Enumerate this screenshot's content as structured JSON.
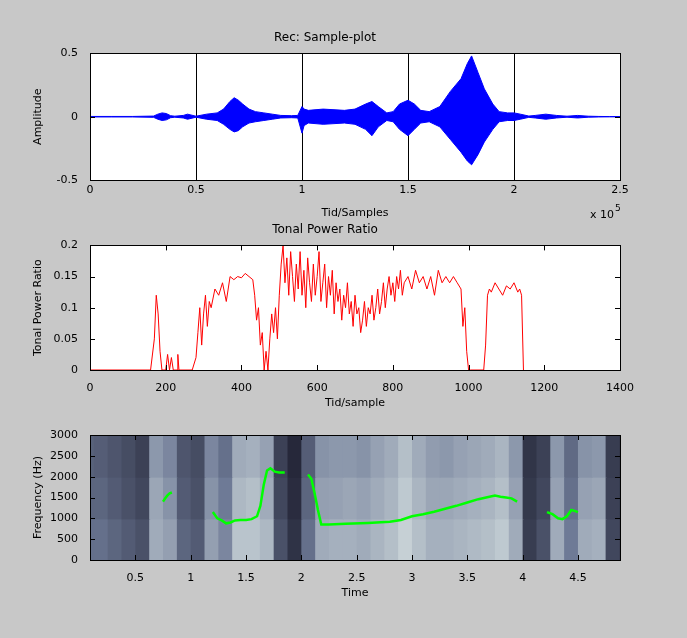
{
  "chart_data": [
    {
      "type": "area",
      "title": "Rec: Sample-plot",
      "x_label": "Tid/Samples",
      "y_label": "Amplitude",
      "x_multiplier": {
        "text": "x 10",
        "superscript": "5"
      },
      "x": [
        0,
        0.1,
        0.2,
        0.3,
        0.32,
        0.34,
        0.36,
        0.38,
        0.4,
        0.44,
        0.46,
        0.5,
        0.55,
        0.6,
        0.63,
        0.66,
        0.68,
        0.7,
        0.72,
        0.75,
        0.78,
        0.82,
        0.86,
        0.9,
        0.95,
        0.98,
        1.0,
        1.01,
        1.03,
        1.1,
        1.2,
        1.25,
        1.3,
        1.33,
        1.36,
        1.4,
        1.43,
        1.46,
        1.5,
        1.53,
        1.56,
        1.6,
        1.65,
        1.7,
        1.75,
        1.78,
        1.8,
        1.83,
        1.86,
        1.9,
        1.93,
        1.97,
        2.0,
        2.03,
        2.07,
        2.1,
        2.15,
        2.2,
        2.25,
        2.3,
        2.35,
        2.4,
        2.45,
        2.5
      ],
      "series": [
        {
          "color": "#0000ff",
          "values": [
            0.002,
            0.002,
            0.002,
            0.005,
            0.02,
            0.03,
            0.025,
            0.008,
            0.004,
            0.01,
            0.02,
            0.004,
            0.02,
            0.03,
            0.06,
            0.12,
            0.15,
            0.13,
            0.1,
            0.06,
            0.04,
            0.03,
            0.02,
            0.01,
            0.008,
            0.01,
            0.08,
            0.06,
            0.05,
            0.06,
            0.05,
            0.06,
            0.1,
            0.12,
            0.08,
            0.03,
            0.04,
            0.1,
            0.13,
            0.1,
            0.05,
            0.04,
            0.08,
            0.2,
            0.3,
            0.42,
            0.48,
            0.35,
            0.22,
            0.1,
            0.04,
            0.03,
            0.03,
            0.02,
            0.005,
            0.01,
            0.02,
            0.01,
            0.004,
            0.01,
            0.004,
            0.002,
            0.001,
            0.001
          ]
        },
        {
          "color": "#0000ff",
          "values": [
            -0.002,
            -0.002,
            -0.002,
            -0.005,
            -0.02,
            -0.03,
            -0.025,
            -0.008,
            -0.004,
            -0.01,
            -0.02,
            -0.004,
            -0.02,
            -0.03,
            -0.06,
            -0.1,
            -0.12,
            -0.11,
            -0.08,
            -0.05,
            -0.04,
            -0.03,
            -0.02,
            -0.01,
            -0.008,
            -0.01,
            -0.13,
            -0.07,
            -0.05,
            -0.06,
            -0.05,
            -0.06,
            -0.1,
            -0.15,
            -0.08,
            -0.03,
            -0.04,
            -0.1,
            -0.15,
            -0.1,
            -0.05,
            -0.04,
            -0.08,
            -0.18,
            -0.28,
            -0.35,
            -0.38,
            -0.3,
            -0.2,
            -0.1,
            -0.04,
            -0.03,
            -0.03,
            -0.02,
            -0.005,
            -0.01,
            -0.02,
            -0.01,
            -0.004,
            -0.01,
            -0.004,
            -0.002,
            -0.001,
            -0.001
          ]
        }
      ],
      "xlim": [
        0,
        2.5
      ],
      "ylim": [
        -0.5,
        0.5
      ],
      "xticks": [
        0,
        0.5,
        1,
        1.5,
        2,
        2.5
      ],
      "yticks": [
        -0.5,
        0,
        0.5
      ],
      "grid": "x"
    },
    {
      "type": "line",
      "title": "Tonal Power Ratio",
      "x_label": "Tid/sample",
      "y_label": "Tonal Power Ratio",
      "x": [
        0,
        160,
        170,
        175,
        180,
        185,
        190,
        200,
        205,
        210,
        215,
        220,
        230,
        232,
        235,
        270,
        280,
        285,
        290,
        295,
        300,
        305,
        310,
        315,
        320,
        330,
        340,
        350,
        360,
        370,
        380,
        390,
        400,
        410,
        420,
        430,
        435,
        440,
        445,
        450,
        455,
        460,
        465,
        470,
        475,
        480,
        485,
        490,
        495,
        500,
        505,
        510,
        515,
        520,
        525,
        530,
        535,
        540,
        545,
        550,
        555,
        560,
        565,
        570,
        575,
        580,
        585,
        590,
        595,
        600,
        605,
        610,
        615,
        620,
        625,
        630,
        635,
        640,
        645,
        650,
        655,
        660,
        665,
        670,
        675,
        680,
        685,
        690,
        695,
        700,
        705,
        710,
        715,
        720,
        725,
        730,
        735,
        740,
        745,
        750,
        755,
        760,
        765,
        770,
        775,
        780,
        785,
        790,
        795,
        800,
        805,
        810,
        815,
        820,
        825,
        830,
        840,
        850,
        860,
        870,
        880,
        890,
        900,
        910,
        920,
        930,
        940,
        950,
        960,
        970,
        980,
        985,
        990,
        995,
        1000,
        1005,
        1040,
        1045,
        1050,
        1055,
        1060,
        1070,
        1080,
        1090,
        1100,
        1110,
        1120,
        1130,
        1135,
        1140,
        1145
      ],
      "values": [
        0,
        0,
        0.05,
        0.12,
        0.09,
        0.03,
        0,
        0,
        0.025,
        0,
        0.02,
        0,
        0,
        0.025,
        0,
        0,
        0.02,
        0.06,
        0.1,
        0.04,
        0.09,
        0.12,
        0.07,
        0.11,
        0.1,
        0.13,
        0.12,
        0.14,
        0.11,
        0.15,
        0.145,
        0.15,
        0.148,
        0.155,
        0.15,
        0.145,
        0.12,
        0.08,
        0.1,
        0.04,
        0.06,
        0,
        0.03,
        0,
        0.05,
        0.09,
        0.06,
        0.1,
        0.05,
        0.12,
        0.17,
        0.2,
        0.14,
        0.18,
        0.12,
        0.19,
        0.15,
        0.11,
        0.17,
        0.13,
        0.19,
        0.12,
        0.16,
        0.1,
        0.18,
        0.14,
        0.11,
        0.17,
        0.12,
        0.15,
        0.19,
        0.11,
        0.14,
        0.17,
        0.1,
        0.15,
        0.12,
        0.16,
        0.09,
        0.14,
        0.11,
        0.13,
        0.08,
        0.12,
        0.1,
        0.14,
        0.09,
        0.11,
        0.07,
        0.12,
        0.09,
        0.1,
        0.06,
        0.08,
        0.11,
        0.07,
        0.1,
        0.09,
        0.12,
        0.08,
        0.1,
        0.13,
        0.09,
        0.11,
        0.14,
        0.1,
        0.13,
        0.15,
        0.12,
        0.14,
        0.11,
        0.15,
        0.13,
        0.16,
        0.12,
        0.14,
        0.15,
        0.13,
        0.16,
        0.14,
        0.15,
        0.13,
        0.15,
        0.12,
        0.16,
        0.14,
        0.15,
        0.14,
        0.15,
        0.14,
        0.13,
        0.07,
        0.1,
        0.03,
        0,
        0,
        0,
        0.04,
        0.12,
        0.13,
        0.125,
        0.14,
        0.13,
        0.12,
        0.135,
        0.13,
        0.14,
        0.125,
        0.13,
        0.12,
        0
      ],
      "color": "#ff0000",
      "xlim": [
        0,
        1400
      ],
      "ylim": [
        0,
        0.2
      ],
      "xticks": [
        0,
        200,
        400,
        600,
        800,
        1000,
        1200,
        1400
      ],
      "yticks": [
        0,
        0.05,
        0.1,
        0.15,
        0.2
      ],
      "grid": false
    },
    {
      "type": "heatmap",
      "x_label": "Time",
      "y_label": "Frequency (Hz)",
      "heatmap": {
        "x_bins": [
          0,
          0.125,
          0.25,
          0.375,
          0.5,
          0.625,
          0.75,
          0.875,
          1,
          1.125,
          1.25,
          1.375,
          1.5,
          1.625,
          1.75,
          1.875,
          2,
          2.125,
          2.25,
          2.375,
          2.5,
          2.625,
          2.75,
          2.875,
          3,
          3.125,
          3.25,
          3.375,
          3.5,
          3.625,
          3.75,
          3.875,
          4,
          4.125,
          4.25,
          4.375,
          4.5,
          4.625,
          4.75,
          4.875,
          5
        ],
        "y_bins": [
          0,
          1000,
          2000,
          3000
        ],
        "cells": [
          [
            0.45,
            0.45,
            0.4,
            0.35,
            0.3,
            0.7,
            0.65,
            0.4,
            0.35,
            0.65,
            0.55,
            0.8,
            0.8,
            0.75,
            0.3,
            0.15,
            0.45,
            0.7,
            0.72,
            0.72,
            0.7,
            0.74,
            0.78,
            0.85,
            0.78,
            0.72,
            0.72,
            0.74,
            0.76,
            0.78,
            0.82,
            0.7,
            0.2,
            0.3,
            0.7,
            0.5,
            0.7,
            0.72,
            0.25,
            0.2
          ],
          [
            0.4,
            0.4,
            0.35,
            0.3,
            0.25,
            0.68,
            0.6,
            0.35,
            0.3,
            0.6,
            0.5,
            0.75,
            0.78,
            0.7,
            0.25,
            0.12,
            0.4,
            0.65,
            0.66,
            0.68,
            0.66,
            0.7,
            0.74,
            0.82,
            0.74,
            0.68,
            0.68,
            0.7,
            0.72,
            0.74,
            0.78,
            0.66,
            0.18,
            0.25,
            0.66,
            0.45,
            0.66,
            0.68,
            0.22,
            0.18
          ],
          [
            0.38,
            0.36,
            0.32,
            0.28,
            0.22,
            0.62,
            0.55,
            0.32,
            0.28,
            0.55,
            0.45,
            0.7,
            0.72,
            0.66,
            0.22,
            0.1,
            0.36,
            0.6,
            0.62,
            0.62,
            0.6,
            0.66,
            0.7,
            0.78,
            0.7,
            0.64,
            0.62,
            0.66,
            0.68,
            0.7,
            0.74,
            0.62,
            0.16,
            0.22,
            0.62,
            0.42,
            0.6,
            0.62,
            0.2,
            0.16
          ]
        ],
        "zlim": [
          0,
          1
        ]
      },
      "series": [
        {
          "type": "line",
          "color": "#00ff00",
          "x": [
            0.75,
            0.77,
            0.79,
            0.81,
            0.83,
            1.0,
            1.2,
            1.24,
            1.28,
            1.32,
            1.36,
            1.4,
            1.45,
            1.5,
            1.55,
            1.6,
            1.63,
            1.66,
            1.69,
            1.72,
            1.76,
            1.8,
            1.85,
            1.95,
            2.06,
            2.09,
            2.12,
            2.15,
            2.18,
            2.25,
            2.4,
            2.6,
            2.8,
            2.9,
            3.0,
            3.1,
            3.2,
            3.3,
            3.4,
            3.5,
            3.6,
            3.7,
            3.75,
            3.8,
            3.85,
            3.9,
            3.95,
            4.1,
            4.22,
            4.27,
            4.32,
            4.36,
            4.4,
            4.44,
            4.47,
            4.5
          ],
          "values": [
            1400,
            1480,
            1550,
            1600,
            1620,
            null,
            1150,
            1000,
            950,
            880,
            900,
            950,
            960,
            960,
            980,
            1050,
            1300,
            1800,
            2150,
            2200,
            2120,
            2100,
            2100,
            null,
            2050,
            1950,
            1600,
            1200,
            850,
            850,
            870,
            890,
            920,
            960,
            1050,
            1100,
            1160,
            1230,
            1300,
            1380,
            1460,
            1520,
            1550,
            1520,
            1500,
            1480,
            1400,
            null,
            1150,
            1100,
            1000,
            980,
            1050,
            1200,
            1180,
            1150
          ]
        }
      ],
      "xlim": [
        0.09,
        4.88
      ],
      "ylim": [
        0,
        3000
      ],
      "xticks": [
        0.5,
        1,
        1.5,
        2,
        2.5,
        3,
        3.5,
        4,
        4.5
      ],
      "yticks": [
        0,
        500,
        1000,
        1500,
        2000,
        2500,
        3000
      ],
      "grid": false
    }
  ]
}
